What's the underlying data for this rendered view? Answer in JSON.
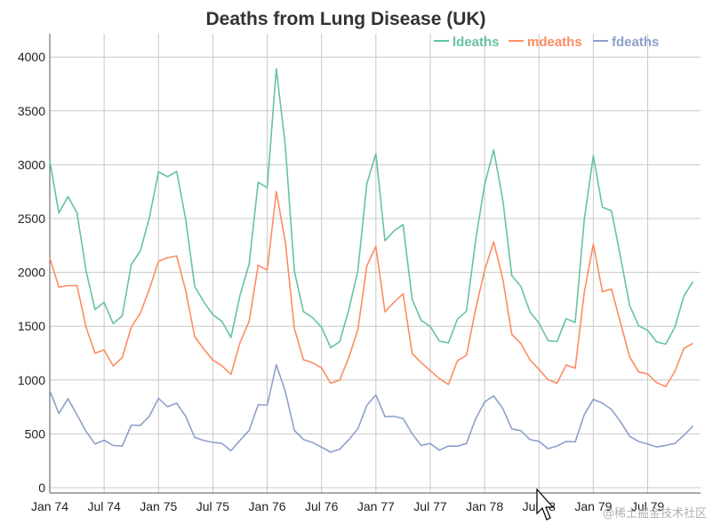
{
  "chart_data": {
    "type": "line",
    "title": "Deaths from Lung Disease (UK)",
    "xlabel": "",
    "ylabel": "",
    "x_ticks": [
      "Jan 74",
      "Jul 74",
      "Jan 75",
      "Jul 75",
      "Jan 76",
      "Jul 76",
      "Jan 77",
      "Jul 77",
      "Jan 78",
      "Jul 78",
      "Jan 79",
      "Jul 79"
    ],
    "y_ticks": [
      0,
      500,
      1000,
      1500,
      2000,
      2500,
      3000,
      3500,
      4000
    ],
    "ylim": [
      0,
      4250
    ],
    "x_start": "Jan 1974",
    "x_end": "Dec 1979",
    "grid": true,
    "legend_position": "top-right",
    "series": [
      {
        "name": "ldeaths",
        "color": "#66c2a5",
        "values": [
          3035,
          2552,
          2704,
          2554,
          2014,
          1655,
          1721,
          1524,
          1596,
          2074,
          2199,
          2512,
          2933,
          2889,
          2938,
          2497,
          1870,
          1726,
          1607,
          1545,
          1396,
          1787,
          2076,
          2837,
          2787,
          3891,
          3179,
          2011,
          1636,
          1580,
          1489,
          1300,
          1356,
          1653,
          2013,
          2823,
          3102,
          2294,
          2385,
          2444,
          1748,
          1554,
          1498,
          1361,
          1346,
          1564,
          1640,
          2293,
          2815,
          3137,
          2679,
          1969,
          1870,
          1633,
          1529,
          1366,
          1357,
          1570,
          1535,
          2491,
          3084,
          2605,
          2573,
          2143,
          1693,
          1504,
          1461,
          1354,
          1333,
          1492,
          1781,
          1915
        ]
      },
      {
        "name": "mdeaths",
        "color": "#fc8d62",
        "values": [
          2134,
          1863,
          1877,
          1877,
          1492,
          1249,
          1280,
          1131,
          1209,
          1492,
          1621,
          1846,
          2103,
          2137,
          2153,
          1833,
          1403,
          1288,
          1186,
          1133,
          1053,
          1347,
          1545,
          2066,
          2020,
          2750,
          2283,
          1479,
          1189,
          1160,
          1113,
          970,
          999,
          1208,
          1467,
          2059,
          2240,
          1634,
          1722,
          1801,
          1246,
          1162,
          1087,
          1013,
          959,
          1179,
          1229,
          1655,
          2019,
          2284,
          1942,
          1423,
          1340,
          1187,
          1098,
          1004,
          970,
          1140,
          1110,
          1812,
          2263,
          1820,
          1846,
          1531,
          1215,
          1075,
          1056,
          975,
          940,
          1081,
          1294,
          1341
        ]
      },
      {
        "name": "fdeaths",
        "color": "#8da0cb",
        "values": [
          901,
          689,
          827,
          677,
          522,
          406,
          441,
          393,
          387,
          582,
          578,
          666,
          830,
          752,
          785,
          664,
          467,
          438,
          421,
          412,
          343,
          440,
          531,
          771,
          767,
          1141,
          896,
          532,
          447,
          420,
          376,
          330,
          357,
          445,
          546,
          764,
          862,
          660,
          663,
          643,
          502,
          392,
          411,
          348,
          387,
          385,
          411,
          638,
          796,
          853,
          737,
          546,
          530,
          446,
          431,
          362,
          387,
          430,
          425,
          679,
          821,
          785,
          727,
          612,
          478,
          429,
          405,
          379,
          393,
          411,
          487,
          574
        ]
      }
    ]
  },
  "watermark": "@稀土掘金技术社区"
}
